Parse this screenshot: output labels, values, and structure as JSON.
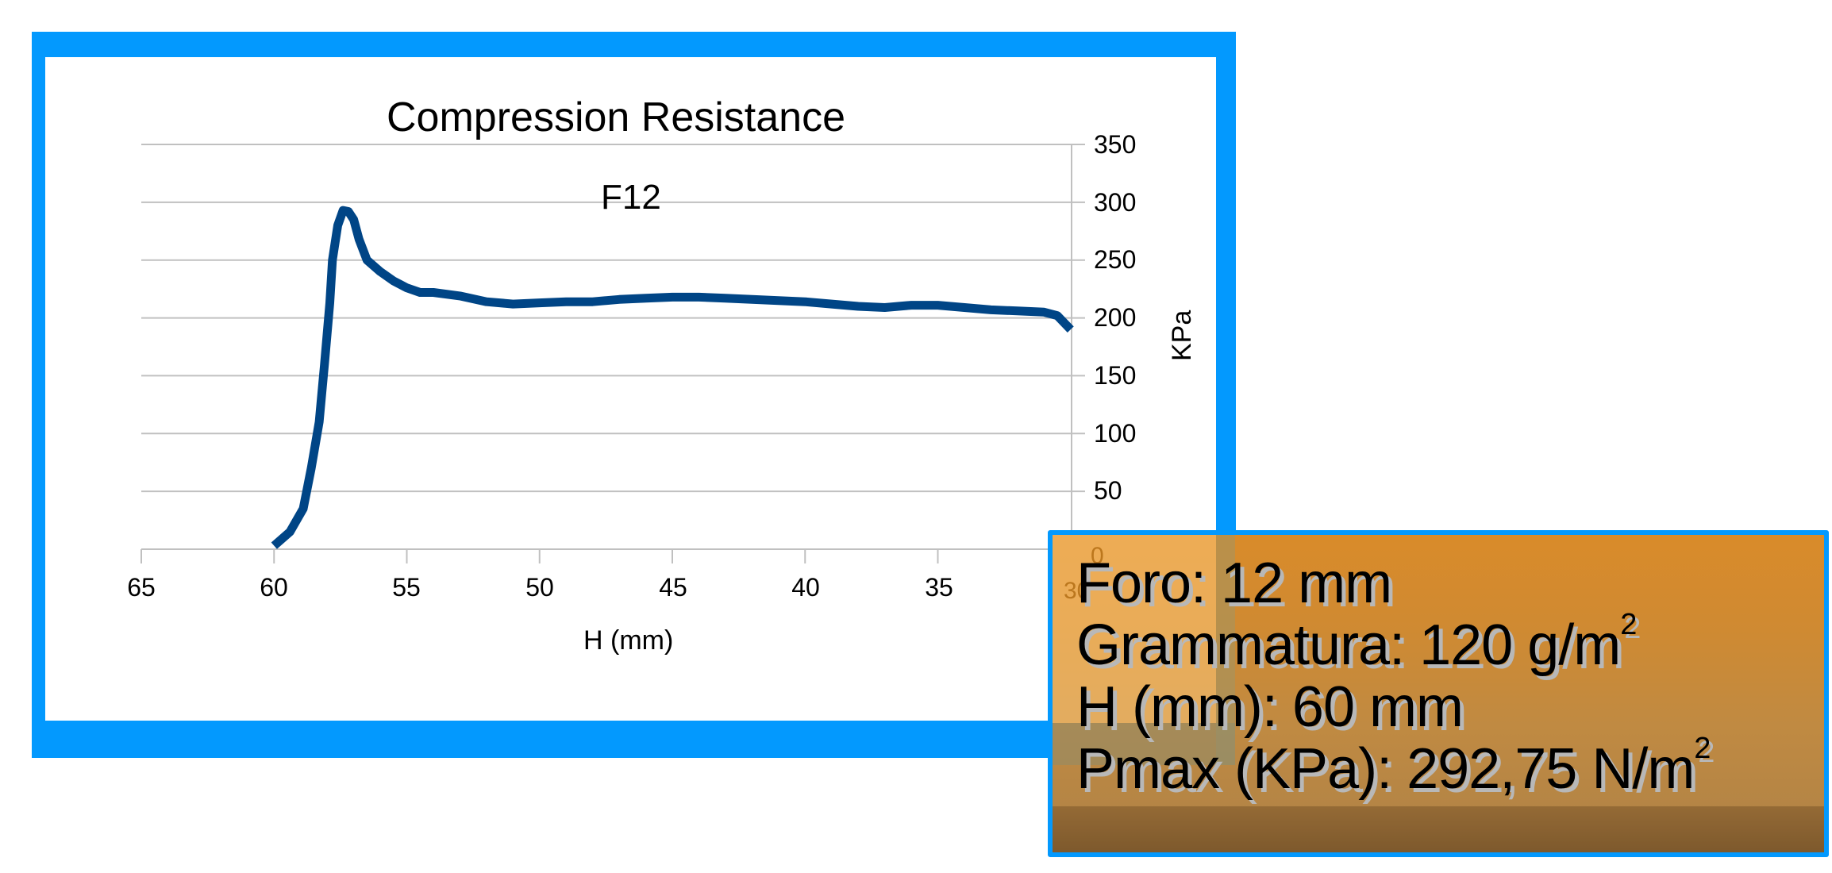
{
  "chart_data": {
    "type": "line",
    "title": "Compression Resistance",
    "subtitle": "F12",
    "xlabel": "H (mm)",
    "ylabel": "KPa",
    "xlim": [
      65,
      30
    ],
    "x_reversed": true,
    "ylim": [
      0,
      350
    ],
    "y_axis_position": "right",
    "grid": "horizontal",
    "x_ticks": [
      65,
      60,
      55,
      50,
      45,
      40,
      35,
      30
    ],
    "y_ticks": [
      0,
      50,
      100,
      150,
      200,
      250,
      300,
      350
    ],
    "series": [
      {
        "name": "F12",
        "color": "#004586",
        "x": [
          60.0,
          59.4,
          58.9,
          58.6,
          58.3,
          58.1,
          57.9,
          57.8,
          57.6,
          57.4,
          57.2,
          57.0,
          56.8,
          56.5,
          56.0,
          55.5,
          55.0,
          54.5,
          54.0,
          53.0,
          52.0,
          51.0,
          50.0,
          49.0,
          48.0,
          47.0,
          46.0,
          45.0,
          44.0,
          43.0,
          42.0,
          41.0,
          40.0,
          39.0,
          38.0,
          37.0,
          36.0,
          35.0,
          34.0,
          33.0,
          32.0,
          31.0,
          30.5,
          30.0
        ],
        "values": [
          3,
          15,
          35,
          70,
          110,
          160,
          213,
          250,
          280,
          293,
          292,
          285,
          268,
          250,
          240,
          232,
          226,
          222,
          222,
          219,
          214,
          212,
          213,
          214,
          214,
          216,
          217,
          218,
          218,
          217,
          216,
          215,
          214,
          212,
          210,
          209,
          211,
          211,
          209,
          207,
          206,
          205,
          202,
          190
        ]
      }
    ]
  },
  "chart_labels": {
    "title": "Compression Resistance",
    "subtitle": "F12",
    "xlabel": "H (mm)",
    "ylabel": "KPa",
    "x_ticks": [
      "65",
      "60",
      "55",
      "50",
      "45",
      "40",
      "35",
      "30"
    ],
    "y_ticks": [
      "350",
      "300",
      "250",
      "200",
      "150",
      "100",
      "50",
      "0"
    ]
  },
  "info_box": {
    "foro_label": "Foro: 12 mm",
    "grammatura_label": "Grammatura: 120 g/m",
    "grammatura_sup": "2",
    "h_label": "H (mm): 60 mm",
    "pmax_label": "Pmax (KPa): 292,75 N/m",
    "pmax_sup": "2"
  },
  "colors": {
    "frame": "#0399fe",
    "line": "#004586",
    "grid": "#c0c0c0"
  }
}
